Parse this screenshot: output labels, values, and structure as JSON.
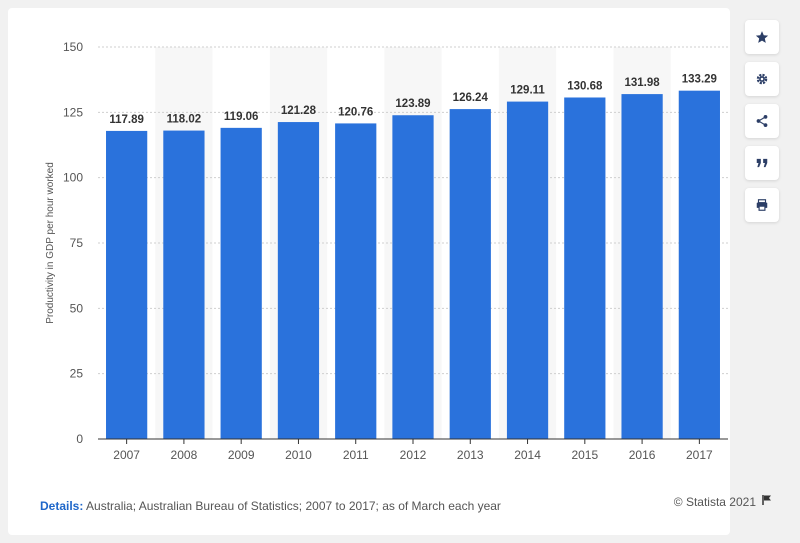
{
  "chart_data": {
    "type": "bar",
    "categories": [
      "2007",
      "2008",
      "2009",
      "2010",
      "2011",
      "2012",
      "2013",
      "2014",
      "2015",
      "2016",
      "2017"
    ],
    "values": [
      117.89,
      118.02,
      119.06,
      121.28,
      120.76,
      123.89,
      126.24,
      129.11,
      130.68,
      131.98,
      133.29
    ],
    "value_labels": [
      "117.89",
      "118.02",
      "119.06",
      "121.28",
      "120.76",
      "123.89",
      "126.24",
      "129.11",
      "130.68",
      "131.98",
      "133.29"
    ],
    "ylabel": "Productivity in GDP per hour worked",
    "ylim": [
      0,
      150
    ],
    "yticks": [
      "0",
      "25",
      "50",
      "75",
      "100",
      "125",
      "150"
    ],
    "grid": true,
    "bar_color": "#2a72dc"
  },
  "footer": {
    "details_label": "Details:",
    "details_text": "Australia; Australian Bureau of Statistics; 2007 to 2017; as of March each year",
    "credit": "© Statista 2021"
  },
  "sidebar": [
    "star-icon",
    "gear-icon",
    "share-icon",
    "quote-icon",
    "print-icon"
  ]
}
